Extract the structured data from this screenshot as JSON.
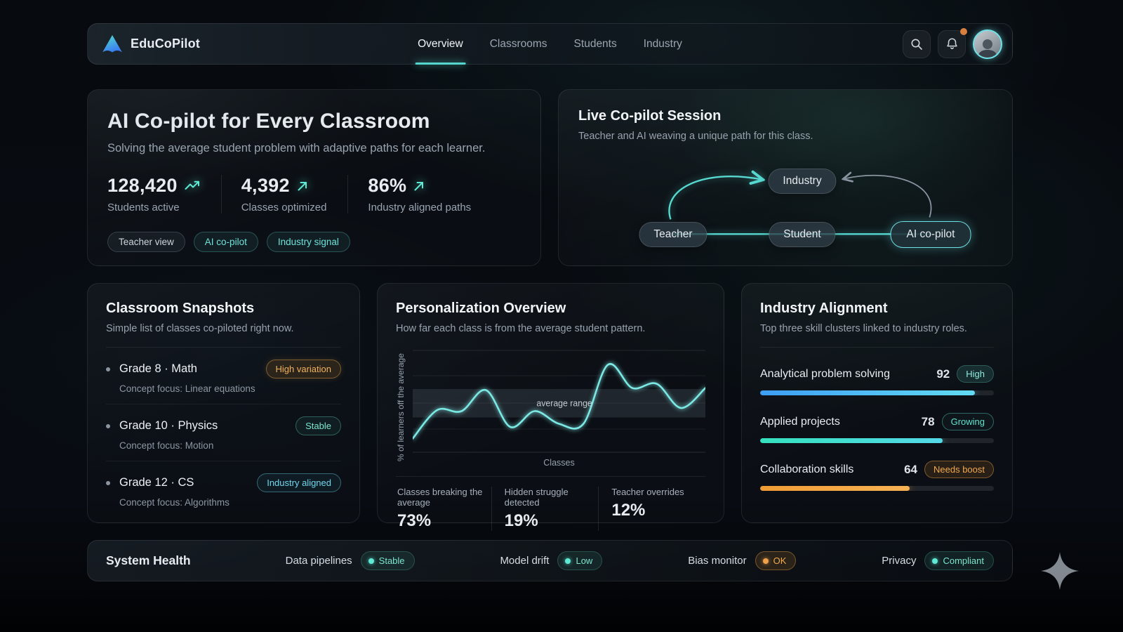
{
  "brand": {
    "name": "EduCoPilot"
  },
  "nav": {
    "items": [
      {
        "label": "Overview",
        "active": true
      },
      {
        "label": "Classrooms",
        "active": false
      },
      {
        "label": "Students",
        "active": false
      },
      {
        "label": "Industry",
        "active": false
      }
    ]
  },
  "hero": {
    "title": "AI Co-pilot for Every Classroom",
    "subtitle": "Solving the average student problem with adaptive paths for each learner.",
    "stats": [
      {
        "value": "128,420",
        "label": "Students active"
      },
      {
        "value": "4,392",
        "label": "Classes optimized"
      },
      {
        "value": "86%",
        "label": "Industry aligned paths"
      }
    ],
    "tags": [
      {
        "label": "Teacher view"
      },
      {
        "label": "AI co-pilot"
      },
      {
        "label": "Industry signal"
      }
    ]
  },
  "session": {
    "title": "Live Co-pilot Session",
    "subtitle": "Teacher and AI weaving a unique path for this class.",
    "nodes": {
      "teacher": "Teacher",
      "student": "Student",
      "ai": "AI co-pilot",
      "industry": "Industry"
    }
  },
  "snapshots": {
    "title": "Classroom Snapshots",
    "subtitle": "Simple list of classes co-piloted right now.",
    "items": [
      {
        "name": "Grade 8 · Math",
        "focus": "Concept focus: Linear equations",
        "badge": "High variation"
      },
      {
        "name": "Grade 10 · Physics",
        "focus": "Concept focus: Motion",
        "badge": "Stable"
      },
      {
        "name": "Grade 12 · CS",
        "focus": "Concept focus: Algorithms",
        "badge": "Industry aligned"
      }
    ]
  },
  "personalization": {
    "title": "Personalization Overview",
    "subtitle": "How far each class is from the average student pattern.",
    "stats": [
      {
        "label": "Classes breaking the average",
        "value": "73%"
      },
      {
        "label": "Hidden struggle detected",
        "value": "19%"
      },
      {
        "label": "Teacher overrides",
        "value": "12%"
      }
    ]
  },
  "chart_data": {
    "type": "line",
    "title": "Personalization Overview",
    "xlabel": "Classes",
    "ylabel": "% of learners off the average",
    "band_label": "average range",
    "x": [
      1,
      2,
      3,
      4,
      5,
      6,
      7,
      8,
      9,
      10,
      11,
      12,
      13
    ],
    "values": [
      13,
      40,
      39,
      59,
      24,
      39,
      27,
      27,
      83,
      61,
      65,
      42,
      61
    ],
    "average_band": [
      33,
      60
    ],
    "ylim": [
      0,
      100
    ],
    "grid": true,
    "legend": false,
    "line_color": "#7be9e5"
  },
  "industry": {
    "title": "Industry Alignment",
    "subtitle": "Top three skill clusters linked to industry roles.",
    "rows": [
      {
        "label": "Analytical problem solving",
        "value": "92",
        "pct": 92,
        "badge": "High"
      },
      {
        "label": "Applied projects",
        "value": "78",
        "pct": 78,
        "badge": "Growing"
      },
      {
        "label": "Collaboration skills",
        "value": "64",
        "pct": 64,
        "badge": "Needs boost"
      }
    ]
  },
  "health": {
    "title": "System Health",
    "items": [
      {
        "label": "Data pipelines",
        "status": "Stable",
        "type": "ok"
      },
      {
        "label": "Model drift",
        "status": "Low",
        "type": "ok"
      },
      {
        "label": "Bias monitor",
        "status": "OK",
        "type": "warn"
      },
      {
        "label": "Privacy",
        "status": "Compliant",
        "type": "ok"
      }
    ]
  },
  "colors": {
    "accent_teal": "#5eead4",
    "accent_cyan": "#67e8f9",
    "warn_orange": "#f0a04b",
    "line": "#7be9e5"
  }
}
